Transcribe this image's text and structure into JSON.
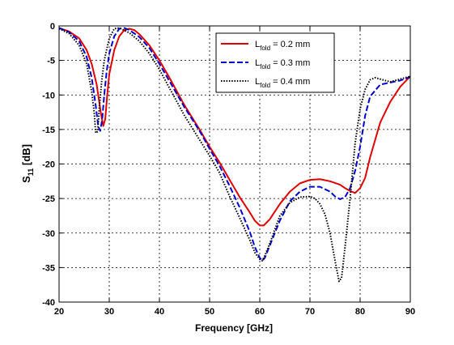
{
  "chart_data": {
    "type": "line",
    "xlabel": "Frequency [GHz]",
    "ylabel_main": "S",
    "ylabel_sub": "11",
    "ylabel_unit": " [dB]",
    "xlim": [
      20,
      90
    ],
    "ylim": [
      -40,
      0
    ],
    "xticks": [
      20,
      30,
      40,
      50,
      60,
      70,
      80,
      90
    ],
    "yticks": [
      0,
      -5,
      -10,
      -15,
      -20,
      -25,
      -30,
      -35,
      -40
    ],
    "grid": true,
    "legend_position": "top-right",
    "series": [
      {
        "legend_main": "L",
        "legend_sub": "fold",
        "legend_value": " = 0.2 mm",
        "color": "#e00000",
        "style": "solid",
        "x": [
          20,
          22,
          24,
          25.5,
          26.5,
          27.5,
          28.3,
          28.8,
          29.2,
          29.6,
          30,
          31,
          32,
          33,
          34,
          35,
          36,
          38,
          40,
          42,
          45,
          48,
          50,
          52,
          54,
          56,
          58,
          59,
          60,
          60.8,
          62,
          64,
          66,
          68,
          70,
          72,
          74,
          76,
          77,
          78,
          79,
          80,
          81,
          82,
          84,
          86,
          88,
          90
        ],
        "y": [
          -0.3,
          -0.8,
          -1.8,
          -3.5,
          -5.5,
          -8.5,
          -12.5,
          -14.5,
          -13.5,
          -10,
          -7,
          -3.5,
          -1.5,
          -0.6,
          -0.4,
          -0.6,
          -1.2,
          -2.8,
          -5,
          -7.5,
          -11.5,
          -15,
          -17.5,
          -19.8,
          -22.3,
          -24.8,
          -27,
          -28.2,
          -28.9,
          -28.9,
          -28,
          -25.8,
          -24,
          -22.8,
          -22.3,
          -22.2,
          -22.5,
          -23,
          -23.5,
          -23.9,
          -24.2,
          -23.5,
          -22,
          -19,
          -14,
          -11,
          -8.8,
          -7.3
        ]
      },
      {
        "legend_main": "L",
        "legend_sub": "fold",
        "legend_value": " = 0.3 mm",
        "color": "#0000cc",
        "style": "dashed",
        "x": [
          20,
          22,
          24,
          25.5,
          26.5,
          27.3,
          27.8,
          28.2,
          28.6,
          29,
          29.5,
          30,
          31,
          32,
          33,
          34,
          36,
          38,
          40,
          42,
          45,
          48,
          50,
          52,
          54,
          56,
          58,
          59,
          60,
          60.5,
          61,
          62,
          64,
          66,
          68,
          70,
          72,
          74,
          75,
          76,
          77,
          78,
          79,
          80,
          81,
          82,
          84,
          86,
          88,
          90
        ],
        "y": [
          -0.3,
          -0.9,
          -2.2,
          -4.5,
          -7.5,
          -11.5,
          -14.5,
          -15.2,
          -13.5,
          -10,
          -6.5,
          -4,
          -1.5,
          -0.4,
          -0.3,
          -0.6,
          -1.6,
          -3.2,
          -5.5,
          -8,
          -11.8,
          -15.2,
          -17.8,
          -20.3,
          -23.2,
          -26.3,
          -29.8,
          -32,
          -33.6,
          -34,
          -33.6,
          -31.8,
          -28.2,
          -25.4,
          -24,
          -23.3,
          -23.3,
          -24,
          -24.7,
          -25.1,
          -24.8,
          -23.5,
          -21,
          -17.5,
          -13,
          -10.2,
          -8.5,
          -8.2,
          -7.9,
          -7.4
        ]
      },
      {
        "legend_main": "L",
        "legend_sub": "fold",
        "legend_value": " = 0.4 mm",
        "color": "#000000",
        "style": "dotted",
        "x": [
          20,
          22,
          24,
          25.5,
          26.5,
          27,
          27.3,
          27.7,
          28,
          28.5,
          29,
          30,
          31,
          32,
          34,
          36,
          38,
          40,
          42,
          45,
          48,
          50,
          52,
          54,
          56,
          58,
          59,
          60,
          60.5,
          61,
          62,
          64,
          66,
          68,
          70,
          71,
          72,
          73,
          74,
          75,
          75.8,
          76.3,
          77,
          78,
          79,
          80,
          81,
          82,
          83,
          84,
          86,
          88,
          90
        ],
        "y": [
          -0.4,
          -1.1,
          -2.8,
          -5.5,
          -9.5,
          -12.5,
          -15.5,
          -15.3,
          -12,
          -8,
          -5,
          -1.8,
          -0.4,
          -0.3,
          -1,
          -2.2,
          -4,
          -6.3,
          -9,
          -13,
          -16.5,
          -18.8,
          -21.3,
          -24.7,
          -27.8,
          -31,
          -32.8,
          -33.8,
          -34,
          -33.3,
          -31.5,
          -27.5,
          -25.6,
          -24.8,
          -24.7,
          -25,
          -25.8,
          -27.3,
          -30,
          -34,
          -37,
          -36.5,
          -32,
          -25,
          -17,
          -12,
          -9.2,
          -7.8,
          -7.5,
          -7.7,
          -8.1,
          -7.7,
          -7.3
        ]
      }
    ]
  }
}
